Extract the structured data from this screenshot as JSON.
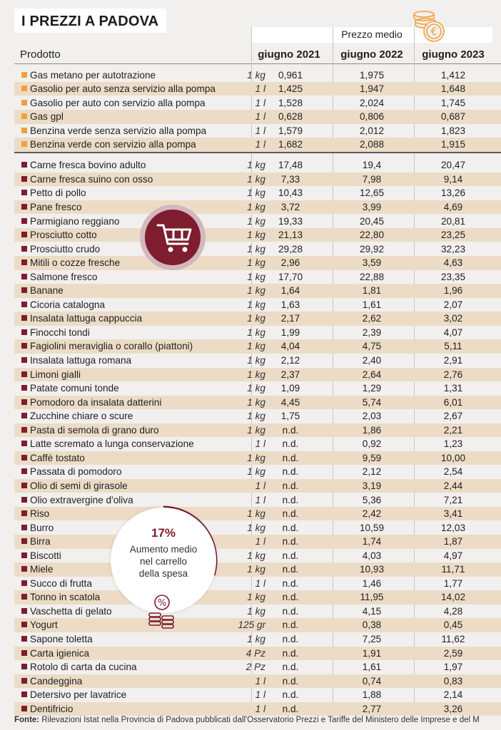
{
  "title": "I PREZZI A PADOVA",
  "header": {
    "prezzo_medio": "Prezzo medio",
    "prodotto": "Prodotto",
    "years": [
      "giugno 2021",
      "giugno 2022",
      "giugno 2023"
    ]
  },
  "colors": {
    "fuel_marker": "#f2a13a",
    "food_marker": "#7d1d2e",
    "row_alt": "#ecdcc6",
    "accent": "#7d1d2e"
  },
  "rows": [
    {
      "name": "Gas metano per autotrazione",
      "unit": "1 kg",
      "v2021": "0,961",
      "v2022": "1,975",
      "v2023": "1,412",
      "group": "fuel"
    },
    {
      "name": "Gasolio per auto senza servizio alla pompa",
      "unit": "1 l",
      "v2021": "1,425",
      "v2022": "1,947",
      "v2023": "1,648",
      "group": "fuel"
    },
    {
      "name": "Gasolio per auto con servizio alla pompa",
      "unit": "1 l",
      "v2021": "1,528",
      "v2022": "2,024",
      "v2023": "1,745",
      "group": "fuel"
    },
    {
      "name": "Gas gpl",
      "unit": "1 l",
      "v2021": "0,628",
      "v2022": "0,806",
      "v2023": "0,687",
      "group": "fuel"
    },
    {
      "name": "Benzina verde senza servizio alla pompa",
      "unit": "1 l",
      "v2021": "1,579",
      "v2022": "2,012",
      "v2023": "1,823",
      "group": "fuel"
    },
    {
      "name": "Benzina verde con servizio alla pompa",
      "unit": "1 l",
      "v2021": "1,682",
      "v2022": "2,088",
      "v2023": "1,915",
      "group": "fuel"
    },
    {
      "name": "Carne fresca bovino adulto",
      "unit": "1 kg",
      "v2021": "17,48",
      "v2022": "19,4",
      "v2023": "20,47",
      "group": "food"
    },
    {
      "name": "Carne fresca suino con osso",
      "unit": "1 kg",
      "v2021": "7,33",
      "v2022": "7,98",
      "v2023": "9,14",
      "group": "food"
    },
    {
      "name": "Petto di pollo",
      "unit": "1 kg",
      "v2021": "10,43",
      "v2022": "12,65",
      "v2023": "13,26",
      "group": "food"
    },
    {
      "name": "Pane fresco",
      "unit": "1 kg",
      "v2021": "3,72",
      "v2022": "3,99",
      "v2023": "4,69",
      "group": "food"
    },
    {
      "name": "Parmigiano reggiano",
      "unit": "1 kg",
      "v2021": "19,33",
      "v2022": "20,45",
      "v2023": "20,81",
      "group": "food"
    },
    {
      "name": "Prosciutto cotto",
      "unit": "1 kg",
      "v2021": "21,13",
      "v2022": "22,80",
      "v2023": "23,25",
      "group": "food"
    },
    {
      "name": "Prosciutto crudo",
      "unit": "1 kg",
      "v2021": "29,28",
      "v2022": "29,92",
      "v2023": "32,23",
      "group": "food"
    },
    {
      "name": "Mitili o cozze fresche",
      "unit": "1 kg",
      "v2021": "2,96",
      "v2022": "3,59",
      "v2023": "4,63",
      "group": "food"
    },
    {
      "name": "Salmone fresco",
      "unit": "1 kg",
      "v2021": "17,70",
      "v2022": "22,88",
      "v2023": "23,35",
      "group": "food"
    },
    {
      "name": "Banane",
      "unit": "1 kg",
      "v2021": "1,64",
      "v2022": "1,81",
      "v2023": "1,96",
      "group": "food"
    },
    {
      "name": "Cicoria catalogna",
      "unit": "1 kg",
      "v2021": "1,63",
      "v2022": "1,61",
      "v2023": "2,07",
      "group": "food"
    },
    {
      "name": "Insalata lattuga cappuccia",
      "unit": "1 kg",
      "v2021": "2,17",
      "v2022": "2,62",
      "v2023": "3,02",
      "group": "food"
    },
    {
      "name": "Finocchi tondi",
      "unit": "1 kg",
      "v2021": "1,99",
      "v2022": "2,39",
      "v2023": "4,07",
      "group": "food"
    },
    {
      "name": "Fagiolini meraviglia o corallo (piattoni)",
      "unit": "1 kg",
      "v2021": "4,04",
      "v2022": "4,75",
      "v2023": "5,11",
      "group": "food"
    },
    {
      "name": "Insalata lattuga romana",
      "unit": "1 kg",
      "v2021": "2,12",
      "v2022": "2,40",
      "v2023": "2,91",
      "group": "food"
    },
    {
      "name": "Limoni gialli",
      "unit": "1 kg",
      "v2021": "2,37",
      "v2022": "2,64",
      "v2023": "2,76",
      "group": "food"
    },
    {
      "name": "Patate comuni tonde",
      "unit": "1 kg",
      "v2021": "1,09",
      "v2022": "1,29",
      "v2023": "1,31",
      "group": "food"
    },
    {
      "name": "Pomodoro da insalata datterini",
      "unit": "1 kg",
      "v2021": "4,45",
      "v2022": "5,74",
      "v2023": "6,01",
      "group": "food"
    },
    {
      "name": "Zucchine chiare o scure",
      "unit": "1 kg",
      "v2021": "1,75",
      "v2022": "2,03",
      "v2023": "2,67",
      "group": "food"
    },
    {
      "name": "Pasta di semola di grano duro",
      "unit": "1 kg",
      "v2021": "n.d.",
      "v2022": "1,86",
      "v2023": "2,21",
      "group": "food"
    },
    {
      "name": "Latte scremato a lunga conservazione",
      "unit": "1 l",
      "v2021": "n.d.",
      "v2022": "0,92",
      "v2023": "1,23",
      "group": "food"
    },
    {
      "name": "Caffè tostato",
      "unit": "1 kg",
      "v2021": "n.d.",
      "v2022": "9,59",
      "v2023": "10,00",
      "group": "food"
    },
    {
      "name": "Passata di pomodoro",
      "unit": "1 kg",
      "v2021": "n.d.",
      "v2022": "2,12",
      "v2023": "2,54",
      "group": "food"
    },
    {
      "name": "Olio di semi di girasole",
      "unit": "1 l",
      "v2021": "n.d.",
      "v2022": "3,19",
      "v2023": "2,44",
      "group": "food"
    },
    {
      "name": "Olio extravergine d'oliva",
      "unit": "1 l",
      "v2021": "n.d.",
      "v2022": "5,36",
      "v2023": "7,21",
      "group": "food"
    },
    {
      "name": "Riso",
      "unit": "1 kg",
      "v2021": "n.d.",
      "v2022": "2,42",
      "v2023": "3,41",
      "group": "food"
    },
    {
      "name": "Burro",
      "unit": "1 kg",
      "v2021": "n.d.",
      "v2022": "10,59",
      "v2023": "12,03",
      "group": "food"
    },
    {
      "name": "Birra",
      "unit": "1 l",
      "v2021": "n.d.",
      "v2022": "1,74",
      "v2023": "1,87",
      "group": "food"
    },
    {
      "name": "Biscotti",
      "unit": "1 kg",
      "v2021": "n.d.",
      "v2022": "4,03",
      "v2023": "4,97",
      "group": "food"
    },
    {
      "name": "Miele",
      "unit": "1 kg",
      "v2021": "n.d.",
      "v2022": "10,93",
      "v2023": "11,71",
      "group": "food"
    },
    {
      "name": "Succo di frutta",
      "unit": "1 l",
      "v2021": "n.d.",
      "v2022": "1,46",
      "v2023": "1,77",
      "group": "food"
    },
    {
      "name": "Tonno in scatola",
      "unit": "1 kg",
      "v2021": "n.d.",
      "v2022": "11,95",
      "v2023": "14,02",
      "group": "food"
    },
    {
      "name": "Vaschetta di gelato",
      "unit": "1 kg",
      "v2021": "n.d.",
      "v2022": "4,15",
      "v2023": "4,28",
      "group": "food"
    },
    {
      "name": "Yogurt",
      "unit": "125 gr",
      "v2021": "n.d.",
      "v2022": "0,38",
      "v2023": "0,45",
      "group": "food"
    },
    {
      "name": "Sapone toletta",
      "unit": "1 kg",
      "v2021": "n.d.",
      "v2022": "7,25",
      "v2023": "11,62",
      "group": "food"
    },
    {
      "name": "Carta igienica",
      "unit": "4 Pz",
      "v2021": "n.d.",
      "v2022": "1,91",
      "v2023": "2,59",
      "group": "food"
    },
    {
      "name": "Rotolo di carta da cucina",
      "unit": "2 Pz",
      "v2021": "n.d.",
      "v2022": "1,61",
      "v2023": "1,97",
      "group": "food"
    },
    {
      "name": "Candeggina",
      "unit": "1 l",
      "v2021": "n.d.",
      "v2022": "0,74",
      "v2023": "0,83",
      "group": "food"
    },
    {
      "name": "Detersivo per lavatrice",
      "unit": "1 l",
      "v2021": "n.d.",
      "v2022": "1,88",
      "v2023": "2,14",
      "group": "food"
    },
    {
      "name": "Dentifricio",
      "unit": "1 l",
      "v2021": "n.d.",
      "v2022": "2,77",
      "v2023": "3,26",
      "group": "food"
    }
  ],
  "stat": {
    "value": "17%",
    "line1": "Aumento medio",
    "line2": "nel carrello",
    "line3": "della spesa"
  },
  "icons": {
    "coin": "euro-coins-icon",
    "cart": "shopping-cart-icon",
    "percent": "percent-coins-icon"
  },
  "source": {
    "label": "Fonte:",
    "text": "Rilevazioni Istat nella Provincia di Padova pubblicati dall'Osservatorio Prezzi e Tariffe del Ministero delle Imprese e del M"
  }
}
